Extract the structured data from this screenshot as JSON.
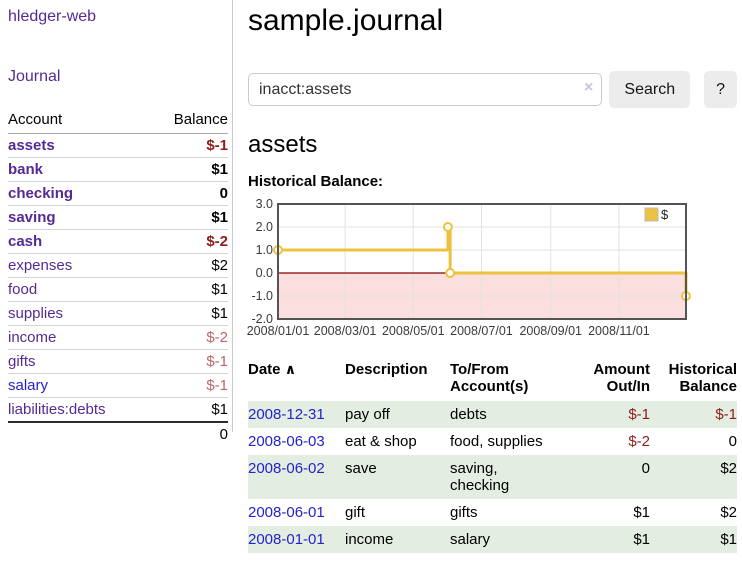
{
  "colors": {
    "link_purple": "#552a97",
    "link_blue": "#2323cc",
    "neg_strong": "#8f1d1d",
    "neg_soft": "#bd6767",
    "row_green": "#e3ede1",
    "button_bg": "#ececec",
    "chart_line": "#edc240",
    "chart_negative_fill": "#fbdede",
    "zero_line": "#8b0000",
    "grid": "#e2e2e2",
    "chart_border": "#545454"
  },
  "sidebar": {
    "app_title": "hledger-web",
    "journal_link": "Journal",
    "accounts_table": {
      "account_header": "Account",
      "balance_header": "Balance",
      "rows": [
        {
          "account": "assets",
          "balance": "$-1",
          "level": 1,
          "bold": true,
          "balance_neg": "strong"
        },
        {
          "account": "bank",
          "balance": "$1",
          "level": 2,
          "bold": true
        },
        {
          "account": "checking",
          "balance": "0",
          "level": 3,
          "bold": true
        },
        {
          "account": "saving",
          "balance": "$1",
          "level": 3,
          "bold": true
        },
        {
          "account": "cash",
          "balance": "$-2",
          "level": 2,
          "bold": true,
          "balance_neg": "strong"
        },
        {
          "account": "expenses",
          "balance": "$2",
          "level": 1
        },
        {
          "account": "food",
          "balance": "$1",
          "level": 2
        },
        {
          "account": "supplies",
          "balance": "$1",
          "level": 2
        },
        {
          "account": "income",
          "balance": "$-2",
          "level": 1,
          "balance_neg": "soft"
        },
        {
          "account": "gifts",
          "balance": "$-1",
          "level": 2,
          "balance_neg": "soft"
        },
        {
          "account": "salary",
          "balance": "$-1",
          "level": 2,
          "balance_neg": "soft",
          "link_color": "blue"
        },
        {
          "account": "liabilities:debts",
          "balance": "$1",
          "level": 1
        }
      ],
      "total": "0"
    }
  },
  "header": {
    "title": "sample.journal"
  },
  "search": {
    "query": "inacct:assets",
    "clear_icon": "×",
    "search_button": "Search",
    "help_button": "?"
  },
  "account_page": {
    "title": "assets",
    "chart_heading": "Historical Balance:"
  },
  "chart_data": {
    "type": "line",
    "step": true,
    "title": "Historical Balance:",
    "series": [
      {
        "name": "$",
        "points": [
          [
            "2008-01-01",
            1
          ],
          [
            "2008-06-01",
            2
          ],
          [
            "2008-06-03",
            0
          ],
          [
            "2008-12-31",
            -1
          ]
        ]
      }
    ],
    "x_domain": [
      "2008-01-01",
      "2008-12-31"
    ],
    "ylim": [
      -2,
      3
    ],
    "y_ticks": [
      3,
      2,
      1,
      0,
      -1,
      -2
    ],
    "y_tick_labels": [
      "3.0",
      "2.0",
      "1.0",
      "0.0",
      "-1.0",
      "-2.0"
    ],
    "x_ticks": [
      {
        "label": "2008/01/01",
        "date": "2008-01-01"
      },
      {
        "label": "2008/03/01",
        "date": "2008-03-01"
      },
      {
        "label": "2008/05/01",
        "date": "2008-05-01"
      },
      {
        "label": "2008/07/01",
        "date": "2008-07-01"
      },
      {
        "label": "2008/09/01",
        "date": "2008-09-01"
      },
      {
        "label": "2008/11/01",
        "date": "2008-11-01"
      }
    ],
    "legend": {
      "label": "$",
      "position": "top-right"
    },
    "grid": true,
    "negative_region_shaded": true
  },
  "register_table": {
    "headers": {
      "date": "Date",
      "sort_indicator": "∧",
      "description": "Description",
      "account": "To/From Account(s)",
      "amount": "Amount Out/In",
      "balance": "Historical Balance"
    },
    "rows": [
      {
        "date": "2008-12-31",
        "description": "pay off",
        "accounts": "debts",
        "amount": "$-1",
        "amount_neg": true,
        "balance": "$-1",
        "balance_neg": true,
        "highlight": true
      },
      {
        "date": "2008-06-03",
        "description": "eat & shop",
        "accounts": "food, supplies",
        "amount": "$-2",
        "amount_neg": true,
        "balance": "0",
        "highlight": false
      },
      {
        "date": "2008-06-02",
        "description": "save",
        "accounts": "saving,\nchecking",
        "amount": "0",
        "balance": "$2",
        "highlight": true
      },
      {
        "date": "2008-06-01",
        "description": "gift",
        "accounts": "gifts",
        "amount": "$1",
        "balance": "$2",
        "highlight": false
      },
      {
        "date": "2008-01-01",
        "description": "income",
        "accounts": "salary",
        "amount": "$1",
        "balance": "$1",
        "highlight": true
      }
    ]
  }
}
